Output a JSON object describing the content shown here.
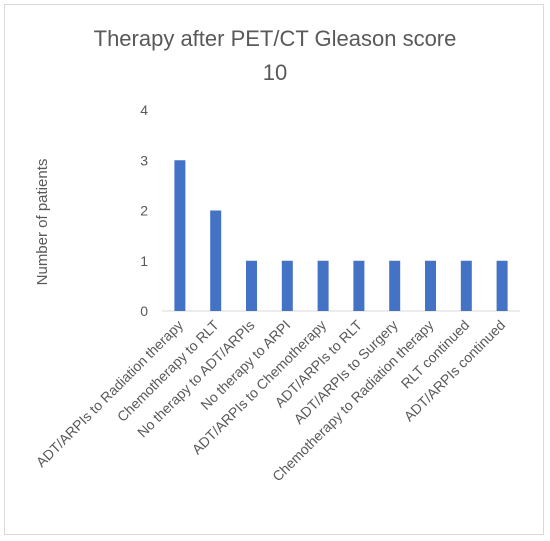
{
  "chart_data": {
    "type": "bar",
    "title_line1": "Therapy after PET/CT Gleason score",
    "title_line2": "10",
    "xlabel": "",
    "ylabel": "Number of patients",
    "ylim": [
      0,
      4
    ],
    "yticks": [
      0,
      1,
      2,
      3,
      4
    ],
    "grid": false,
    "legend": "none",
    "bar_color": "#4472c4",
    "categories": [
      "ADT/ARPIs to Radiation therapy",
      "Chemotherapy to RLT",
      "No therapy to ADT/ARPIs",
      "No therapy to ARPI",
      "ADT/ARPIs to Chemotherapy",
      "ADT/ARPIs to RLT",
      "ADT/ARPIs to Surgery",
      "Chemotherapy to Radiation therapy",
      "RLT continued",
      "ADT/ARPIs continued"
    ],
    "values": [
      3,
      2,
      1,
      1,
      1,
      1,
      1,
      1,
      1,
      1
    ]
  }
}
